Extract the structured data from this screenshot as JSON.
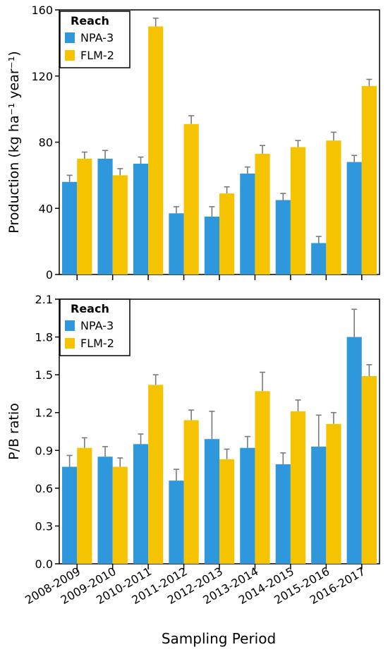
{
  "figure": {
    "xlabel": "Sampling Period"
  },
  "chart_data": [
    {
      "type": "bar",
      "categories": [
        "2008-2009",
        "2009-2010",
        "2010-2011",
        "2011-2012",
        "2012-2013",
        "2013-2014",
        "2014-2015",
        "2015-2016",
        "2016-2017"
      ],
      "ylabel": "Production (kg ha⁻¹ year⁻¹)",
      "ylim": [
        0,
        160
      ],
      "yticks": [
        0,
        40,
        80,
        120,
        160
      ],
      "legend": {
        "title": "Reach",
        "placement": "top-left"
      },
      "series": [
        {
          "name": "NPA-3",
          "color": "#2f97dc",
          "values": [
            56,
            70,
            67,
            37,
            35,
            61,
            45,
            19,
            68
          ],
          "errors": [
            4,
            5,
            4,
            4,
            6,
            4,
            4,
            4,
            4
          ]
        },
        {
          "name": "FLM-2",
          "color": "#f6c300",
          "values": [
            70,
            60,
            150,
            91,
            49,
            73,
            77,
            81,
            114
          ],
          "errors": [
            4,
            4,
            5,
            5,
            4,
            5,
            4,
            5,
            4
          ]
        }
      ]
    },
    {
      "type": "bar",
      "categories": [
        "2008-2009",
        "2009-2010",
        "2010-2011",
        "2011-2012",
        "2012-2013",
        "2013-2014",
        "2014-2015",
        "2015-2016",
        "2016-2017"
      ],
      "ylabel": "P/B ratio",
      "xlabel": "Sampling Period",
      "ylim": [
        0,
        2.1
      ],
      "yticks": [
        "0.0",
        "0.3",
        "0.6",
        "0.9",
        "1.2",
        "1.5",
        "1.8",
        "2.1"
      ],
      "legend": {
        "title": "Reach",
        "placement": "top-left"
      },
      "series": [
        {
          "name": "NPA-3",
          "color": "#2f97dc",
          "values": [
            0.77,
            0.85,
            0.95,
            0.66,
            0.99,
            0.92,
            0.79,
            0.93,
            1.8
          ],
          "errors": [
            0.09,
            0.08,
            0.08,
            0.09,
            0.22,
            0.09,
            0.09,
            0.25,
            0.22
          ]
        },
        {
          "name": "FLM-2",
          "color": "#f6c300",
          "values": [
            0.92,
            0.77,
            1.42,
            1.14,
            0.83,
            1.37,
            1.21,
            1.11,
            1.49
          ],
          "errors": [
            0.08,
            0.07,
            0.08,
            0.08,
            0.08,
            0.15,
            0.09,
            0.09,
            0.09
          ]
        }
      ]
    }
  ]
}
